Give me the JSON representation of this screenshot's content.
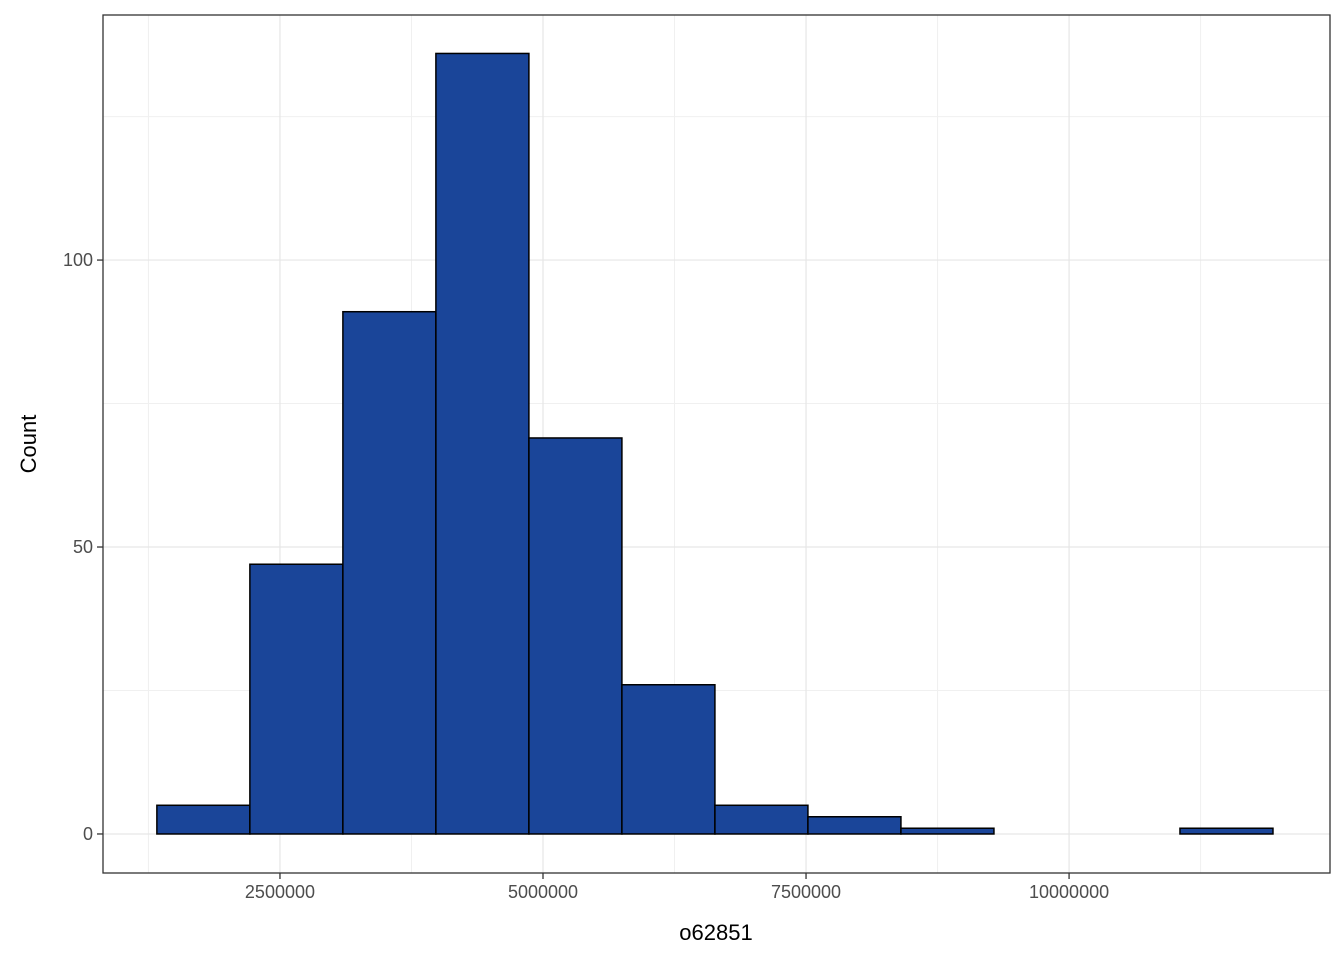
{
  "chart_data": {
    "type": "histogram",
    "x_label": "o62851",
    "y_label": "Count",
    "bins": [
      1330000,
      2214000,
      3098000,
      3982000,
      4866000,
      5750000,
      6634000,
      7518000,
      8402000,
      9286000,
      10170000,
      11054000,
      11938000
    ],
    "values": [
      5,
      47,
      91,
      136,
      69,
      26,
      5,
      3,
      1,
      0,
      0,
      1
    ],
    "color": "#1a4599",
    "edge_color": "#000000",
    "xlim": [
      818000,
      12480000
    ],
    "ylim": [
      -6.8,
      142.7
    ],
    "xticks": [
      2500000,
      5000000,
      7500000,
      10000000
    ],
    "yticks": [
      0,
      50,
      100
    ],
    "x_minor_grid": [
      1250000,
      3750000,
      6250000,
      8750000,
      11250000
    ],
    "y_minor_grid": [
      25,
      75,
      125
    ],
    "grid": true
  }
}
